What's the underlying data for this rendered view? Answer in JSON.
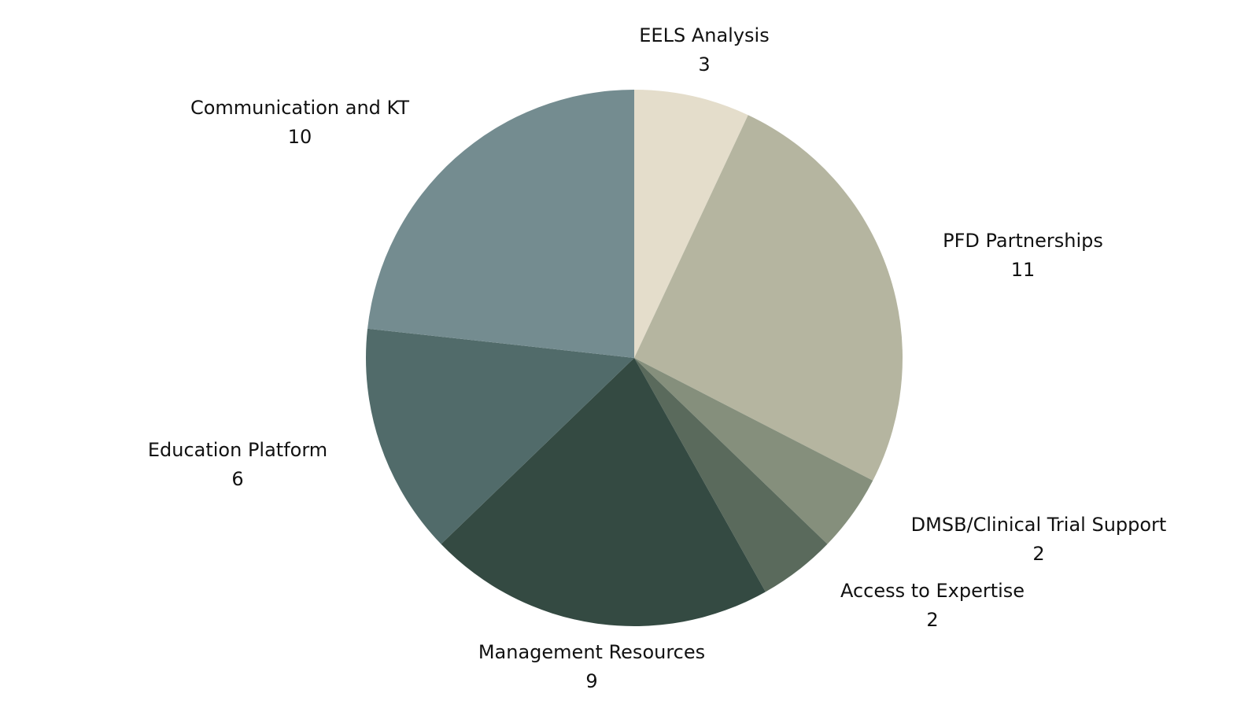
{
  "chart_data": {
    "type": "pie",
    "start_angle": "top",
    "direction": "clockwise",
    "legend": "none",
    "slices": [
      {
        "label": "EELS Analysis",
        "value": 3,
        "color": "#e4ddcb"
      },
      {
        "label": "PFD Partnerships",
        "value": 11,
        "color": "#b5b5a0"
      },
      {
        "label": "DMSB/Clinical Trial Support",
        "value": 2,
        "color": "#858f7c"
      },
      {
        "label": "Access to Expertise",
        "value": 2,
        "color": "#5a6a5c"
      },
      {
        "label": "Management Resources",
        "value": 9,
        "color": "#344a42"
      },
      {
        "label": "Education Platform",
        "value": 6,
        "color": "#516b6a"
      },
      {
        "label": "Communication and KT",
        "value": 10,
        "color": "#748c90"
      }
    ]
  }
}
